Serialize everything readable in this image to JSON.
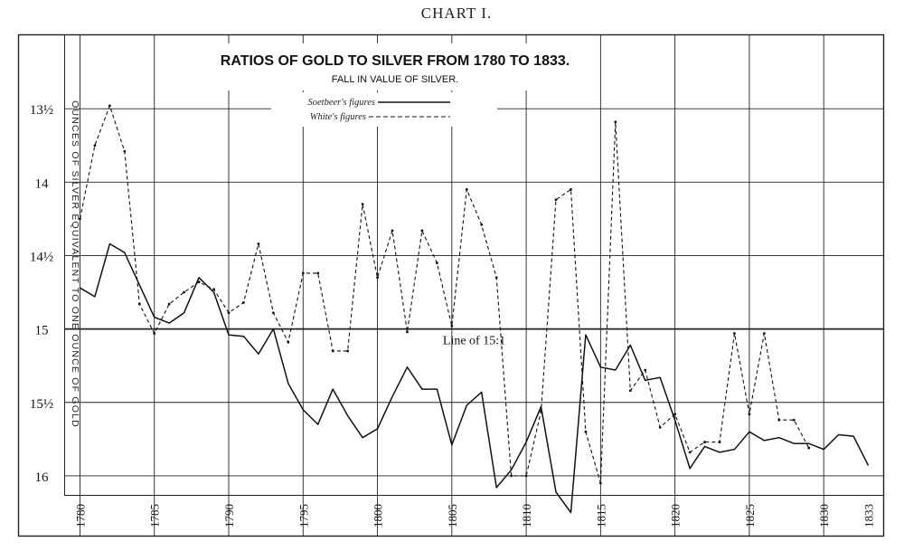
{
  "page": {
    "heading": "CHART I."
  },
  "chart_data": {
    "type": "line",
    "title": "RATIOS OF GOLD TO SILVER FROM 1780 TO 1833.",
    "subtitle": "FALL IN VALUE OF SILVER.",
    "xlabel": "",
    "ylabel": "OUNCES OF SILVER EQUIVALENT TO ONE OUNCE OF GOLD",
    "x_ticks": [
      1780,
      1785,
      1790,
      1795,
      1800,
      1805,
      1810,
      1815,
      1820,
      1825,
      1830,
      1833
    ],
    "y_ticks": [
      {
        "value": 13.5,
        "label": "13½"
      },
      {
        "value": 14,
        "label": "14"
      },
      {
        "value": 14.5,
        "label": "14½"
      },
      {
        "value": 15,
        "label": "15"
      },
      {
        "value": 15.5,
        "label": "15½"
      },
      {
        "value": 16,
        "label": "16"
      }
    ],
    "xlim": [
      1779,
      1834
    ],
    "ylim": [
      13.0,
      16.13
    ],
    "y_inverted": true,
    "grid": true,
    "legend_position": "top-center",
    "annotations": [
      {
        "text": "Line of 15:1",
        "x": 1806.5,
        "y": 15.03
      }
    ],
    "reference_line": 15,
    "series": [
      {
        "name": "Soetbeer's figures",
        "style": "solid",
        "points": [
          [
            1780,
            14.72
          ],
          [
            1781,
            14.78
          ],
          [
            1782,
            14.42
          ],
          [
            1783,
            14.48
          ],
          [
            1784,
            14.7
          ],
          [
            1785,
            14.92
          ],
          [
            1786,
            14.96
          ],
          [
            1787,
            14.89
          ],
          [
            1788,
            14.65
          ],
          [
            1789,
            14.75
          ],
          [
            1790,
            15.04
          ],
          [
            1791,
            15.05
          ],
          [
            1792,
            15.17
          ],
          [
            1793,
            15.0
          ],
          [
            1794,
            15.37
          ],
          [
            1795,
            15.55
          ],
          [
            1796,
            15.65
          ],
          [
            1797,
            15.41
          ],
          [
            1798,
            15.59
          ],
          [
            1799,
            15.74
          ],
          [
            1800,
            15.68
          ],
          [
            1801,
            15.46
          ],
          [
            1802,
            15.26
          ],
          [
            1803,
            15.41
          ],
          [
            1804,
            15.41
          ],
          [
            1805,
            15.79
          ],
          [
            1806,
            15.52
          ],
          [
            1807,
            15.43
          ],
          [
            1808,
            16.08
          ],
          [
            1809,
            15.96
          ],
          [
            1810,
            15.77
          ],
          [
            1811,
            15.53
          ],
          [
            1812,
            16.11
          ],
          [
            1813,
            16.25
          ],
          [
            1814,
            15.04
          ],
          [
            1815,
            15.26
          ],
          [
            1816,
            15.28
          ],
          [
            1817,
            15.11
          ],
          [
            1818,
            15.35
          ],
          [
            1819,
            15.33
          ],
          [
            1820,
            15.62
          ],
          [
            1821,
            15.95
          ],
          [
            1822,
            15.8
          ],
          [
            1823,
            15.84
          ],
          [
            1824,
            15.82
          ],
          [
            1825,
            15.7
          ],
          [
            1826,
            15.76
          ],
          [
            1827,
            15.74
          ],
          [
            1828,
            15.78
          ],
          [
            1829,
            15.78
          ],
          [
            1830,
            15.82
          ],
          [
            1831,
            15.72
          ],
          [
            1832,
            15.73
          ],
          [
            1833,
            15.93
          ]
        ]
      },
      {
        "name": "White's figures",
        "style": "dashed",
        "points": [
          [
            1780,
            14.25
          ],
          [
            1781,
            13.75
          ],
          [
            1782,
            13.48
          ],
          [
            1783,
            13.79
          ],
          [
            1784,
            14.83
          ],
          [
            1785,
            15.03
          ],
          [
            1786,
            14.83
          ],
          [
            1787,
            14.75
          ],
          [
            1788,
            14.68
          ],
          [
            1789,
            14.73
          ],
          [
            1790,
            14.89
          ],
          [
            1791,
            14.82
          ],
          [
            1792,
            14.42
          ],
          [
            1793,
            14.89
          ],
          [
            1794,
            15.09
          ],
          [
            1795,
            14.62
          ],
          [
            1796,
            14.62
          ],
          [
            1797,
            15.15
          ],
          [
            1798,
            15.15
          ],
          [
            1799,
            14.15
          ],
          [
            1800,
            14.65
          ],
          [
            1801,
            14.33
          ],
          [
            1802,
            15.02
          ],
          [
            1803,
            14.33
          ],
          [
            1804,
            14.55
          ],
          [
            1805,
            14.98
          ],
          [
            1806,
            14.05
          ],
          [
            1807,
            14.29
          ],
          [
            1808,
            14.65
          ],
          [
            1809,
            16.0
          ],
          [
            1810,
            16.0
          ],
          [
            1811,
            15.56
          ],
          [
            1812,
            14.12
          ],
          [
            1813,
            14.05
          ],
          [
            1814,
            15.7
          ],
          [
            1815,
            16.05
          ],
          [
            1816,
            13.59
          ],
          [
            1817,
            15.42
          ],
          [
            1818,
            15.28
          ],
          [
            1819,
            15.67
          ],
          [
            1820,
            15.58
          ],
          [
            1821,
            15.84
          ],
          [
            1822,
            15.77
          ],
          [
            1823,
            15.77
          ],
          [
            1824,
            15.03
          ],
          [
            1825,
            15.58
          ],
          [
            1826,
            15.03
          ],
          [
            1827,
            15.62
          ],
          [
            1828,
            15.62
          ],
          [
            1829,
            15.81
          ]
        ]
      }
    ]
  }
}
